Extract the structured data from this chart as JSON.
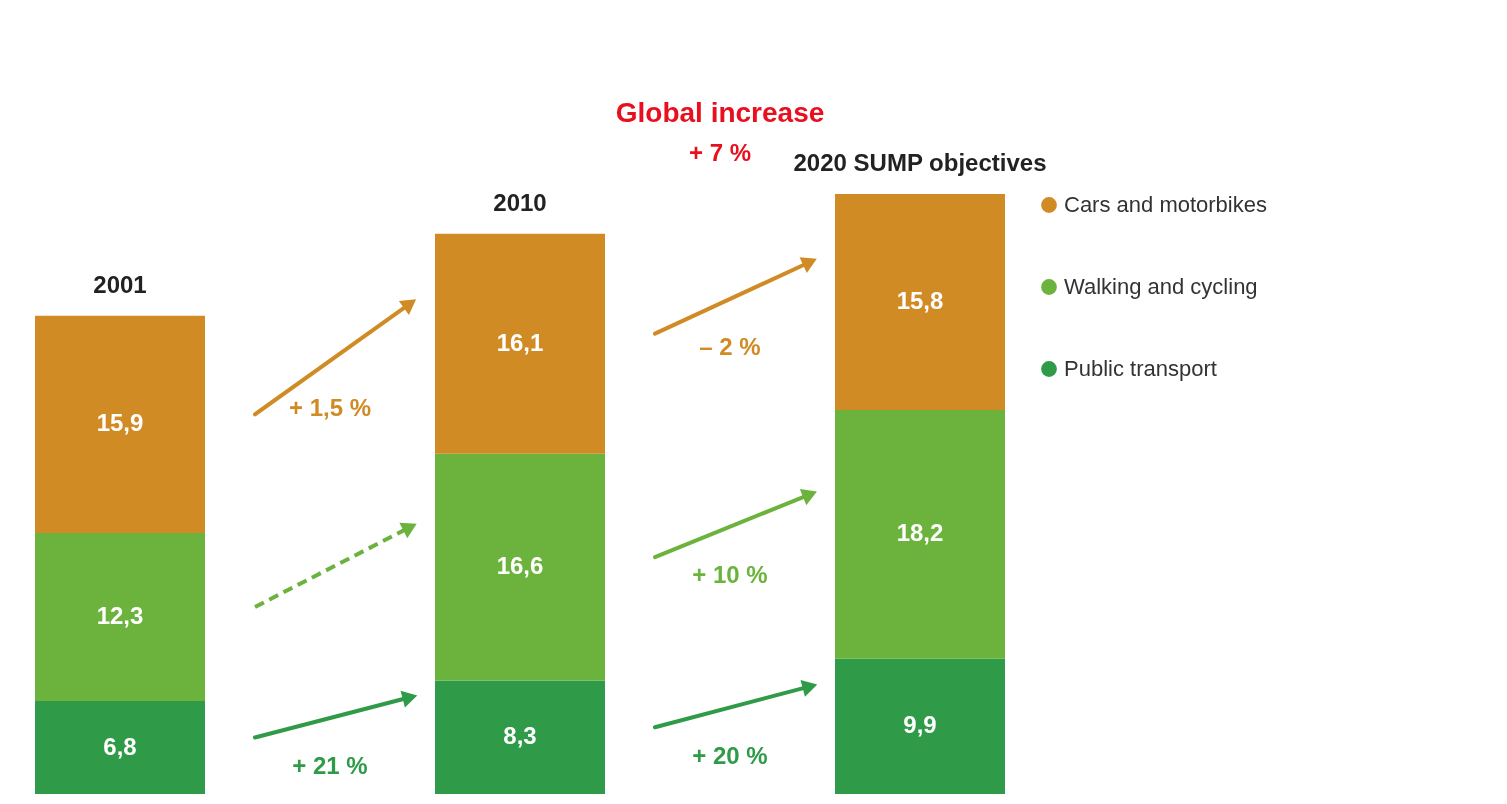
{
  "chart_data": {
    "type": "bar",
    "stacked": true,
    "legend": "right",
    "categories": [
      "2001",
      "2010",
      "2020 SUMP objectives"
    ],
    "series": [
      {
        "name": "Public transport",
        "color": "#2f9a47",
        "values": [
          6.8,
          8.3,
          9.9
        ],
        "value_labels": [
          "6,8",
          "8,3",
          "9,9"
        ]
      },
      {
        "name": "Walking and cycling",
        "color": "#6cb33e",
        "values": [
          12.3,
          16.6,
          18.2
        ],
        "value_labels": [
          "12,3",
          "16,6",
          "18,2"
        ]
      },
      {
        "name": "Cars and motorbikes",
        "color": "#d08b24",
        "values": [
          15.9,
          16.1,
          15.8
        ],
        "value_labels": [
          "15,9",
          "16,1",
          "15,8"
        ]
      }
    ],
    "annotations": [
      "+ 1,5 %",
      "– 2 %",
      "+ 10 %",
      "+ 21 %",
      "+ 20 %",
      "Global increase",
      "+ 7 %"
    ]
  }
}
